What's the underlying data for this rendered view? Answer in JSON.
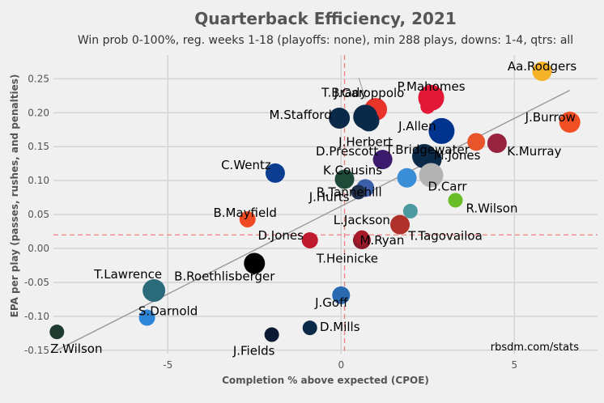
{
  "chart_data": {
    "type": "scatter",
    "title": "Quarterback Efficiency, 2021",
    "subtitle": "Win prob 0-100%, reg. weeks 1-18 (playoffs: none), min 288 plays, downs: 1-4, qtrs: all",
    "xlabel": "Completion % above expected (CPOE)",
    "ylabel": "EPA per play (passes, rushes, and penalties)",
    "xlim": [
      -8.3,
      7.4
    ],
    "ylim": [
      -0.155,
      0.285
    ],
    "x_ticks": [
      -5,
      0,
      5
    ],
    "x_tick_labels": [
      "-5",
      "0",
      "5"
    ],
    "y_ticks": [
      -0.15,
      -0.1,
      -0.05,
      0.0,
      0.05,
      0.1,
      0.15,
      0.2,
      0.25
    ],
    "y_tick_labels": [
      "-0.15",
      "-0.10",
      "-0.05",
      "0.00",
      "0.05",
      "0.10",
      "0.15",
      "0.20",
      "0.25"
    ],
    "grid": true,
    "mean_lines": {
      "x": 0.1,
      "y": 0.02,
      "color": "#f08080"
    },
    "trend_line": {
      "x": [
        -8.2,
        6.6
      ],
      "y": [
        -0.15,
        0.233
      ],
      "color": "#999999"
    },
    "credit": "rbsdm.com/stats",
    "points": [
      {
        "label": "Aa.Rodgers",
        "x": 5.8,
        "y": 0.261,
        "color": "#f5b228",
        "size": 12
      },
      {
        "label": "P.Mahomes",
        "x": 2.6,
        "y": 0.222,
        "color": "#e31837",
        "size": 16
      },
      {
        "label": "",
        "x": 2.5,
        "y": 0.209,
        "color": "#e31837",
        "size": 9
      },
      {
        "label": "J.Garoppolo",
        "x": 1.0,
        "y": 0.205,
        "color": "#e8342a",
        "size": 14
      },
      {
        "label": "T.Brady",
        "x": 0.7,
        "y": 0.194,
        "color": "#0b2a4a",
        "size": 15
      },
      {
        "label": "M.Stafford",
        "x": -0.05,
        "y": 0.192,
        "color": "#0b2a4a",
        "size": 13
      },
      {
        "label": "J.Herbert",
        "x": 0.8,
        "y": 0.188,
        "color": "#0b2a4a",
        "size": 13
      },
      {
        "label": "J.Burrow",
        "x": 6.6,
        "y": 0.186,
        "color": "#f14e23",
        "size": 13
      },
      {
        "label": "J.Allen",
        "x": 2.9,
        "y": 0.173,
        "color": "#00338d",
        "size": 16
      },
      {
        "label": "",
        "x": 3.9,
        "y": 0.157,
        "color": "#e8552a",
        "size": 11
      },
      {
        "label": "K.Murray",
        "x": 4.5,
        "y": 0.155,
        "color": "#97233f",
        "size": 12
      },
      {
        "label": "D.Prescott",
        "x": 1.2,
        "y": 0.131,
        "color": "#3c1a6e",
        "size": 12
      },
      {
        "label": "T.Bridgewater",
        "x": 2.4,
        "y": 0.136,
        "color": "#0b2a4a",
        "size": 15
      },
      {
        "label": "M.Jones",
        "x": 2.6,
        "y": 0.131,
        "color": "#0b2a4a",
        "size": 13
      },
      {
        "label": "C.Wentz",
        "x": -1.9,
        "y": 0.111,
        "color": "#0b3d91",
        "size": 12
      },
      {
        "label": "K.Cousins",
        "x": 0.1,
        "y": 0.102,
        "color": "#1f4a3a",
        "size": 12
      },
      {
        "label": "",
        "x": 1.9,
        "y": 0.104,
        "color": "#3a8ed8",
        "size": 12
      },
      {
        "label": "D.Carr",
        "x": 2.6,
        "y": 0.108,
        "color": "#b3b3b3",
        "size": 15
      },
      {
        "label": "R.Tannehill",
        "x": 0.7,
        "y": 0.089,
        "color": "#3a5fa8",
        "size": 11
      },
      {
        "label": "J.Hurts",
        "x": 0.5,
        "y": 0.083,
        "color": "#1d2f4a",
        "size": 9
      },
      {
        "label": "R.Wilson",
        "x": 3.3,
        "y": 0.071,
        "color": "#69be28",
        "size": 9
      },
      {
        "label": "L.Jackson",
        "x": 2.0,
        "y": 0.055,
        "color": "#4a9aa0",
        "size": 9
      },
      {
        "label": "B.Mayfield",
        "x": -2.7,
        "y": 0.043,
        "color": "#f04a25",
        "size": 10
      },
      {
        "label": "T.Tagovailoa",
        "x": 1.7,
        "y": 0.035,
        "color": "#b0302a",
        "size": 12
      },
      {
        "label": "D.Jones",
        "x": -0.9,
        "y": 0.012,
        "color": "#c01a2e",
        "size": 10
      },
      {
        "label": "M.Ryan",
        "x": 0.6,
        "y": 0.012,
        "color": "#8a1a2a",
        "size": 11
      },
      {
        "label": "T.Heinicke",
        "x": 0.6,
        "y": 0.016,
        "color": "#a81a2a",
        "size": 9
      },
      {
        "label": "B.Roethlisberger",
        "x": -2.5,
        "y": -0.022,
        "color": "#000000",
        "size": 13
      },
      {
        "label": "T.Lawrence",
        "x": -5.4,
        "y": -0.062,
        "color": "#2a6a7a",
        "size": 14
      },
      {
        "label": "J.Goff",
        "x": 0.0,
        "y": -0.069,
        "color": "#2a6ab0",
        "size": 11
      },
      {
        "label": "S.Darnold",
        "x": -5.6,
        "y": -0.102,
        "color": "#2f86d8",
        "size": 10
      },
      {
        "label": "D.Mills",
        "x": -0.9,
        "y": -0.117,
        "color": "#0b2a4a",
        "size": 9
      },
      {
        "label": "J.Fields",
        "x": -2.0,
        "y": -0.127,
        "color": "#0b1a33",
        "size": 9
      },
      {
        "label": "Z.Wilson",
        "x": -8.2,
        "y": -0.123,
        "color": "#1f3a2f",
        "size": 9
      }
    ]
  }
}
